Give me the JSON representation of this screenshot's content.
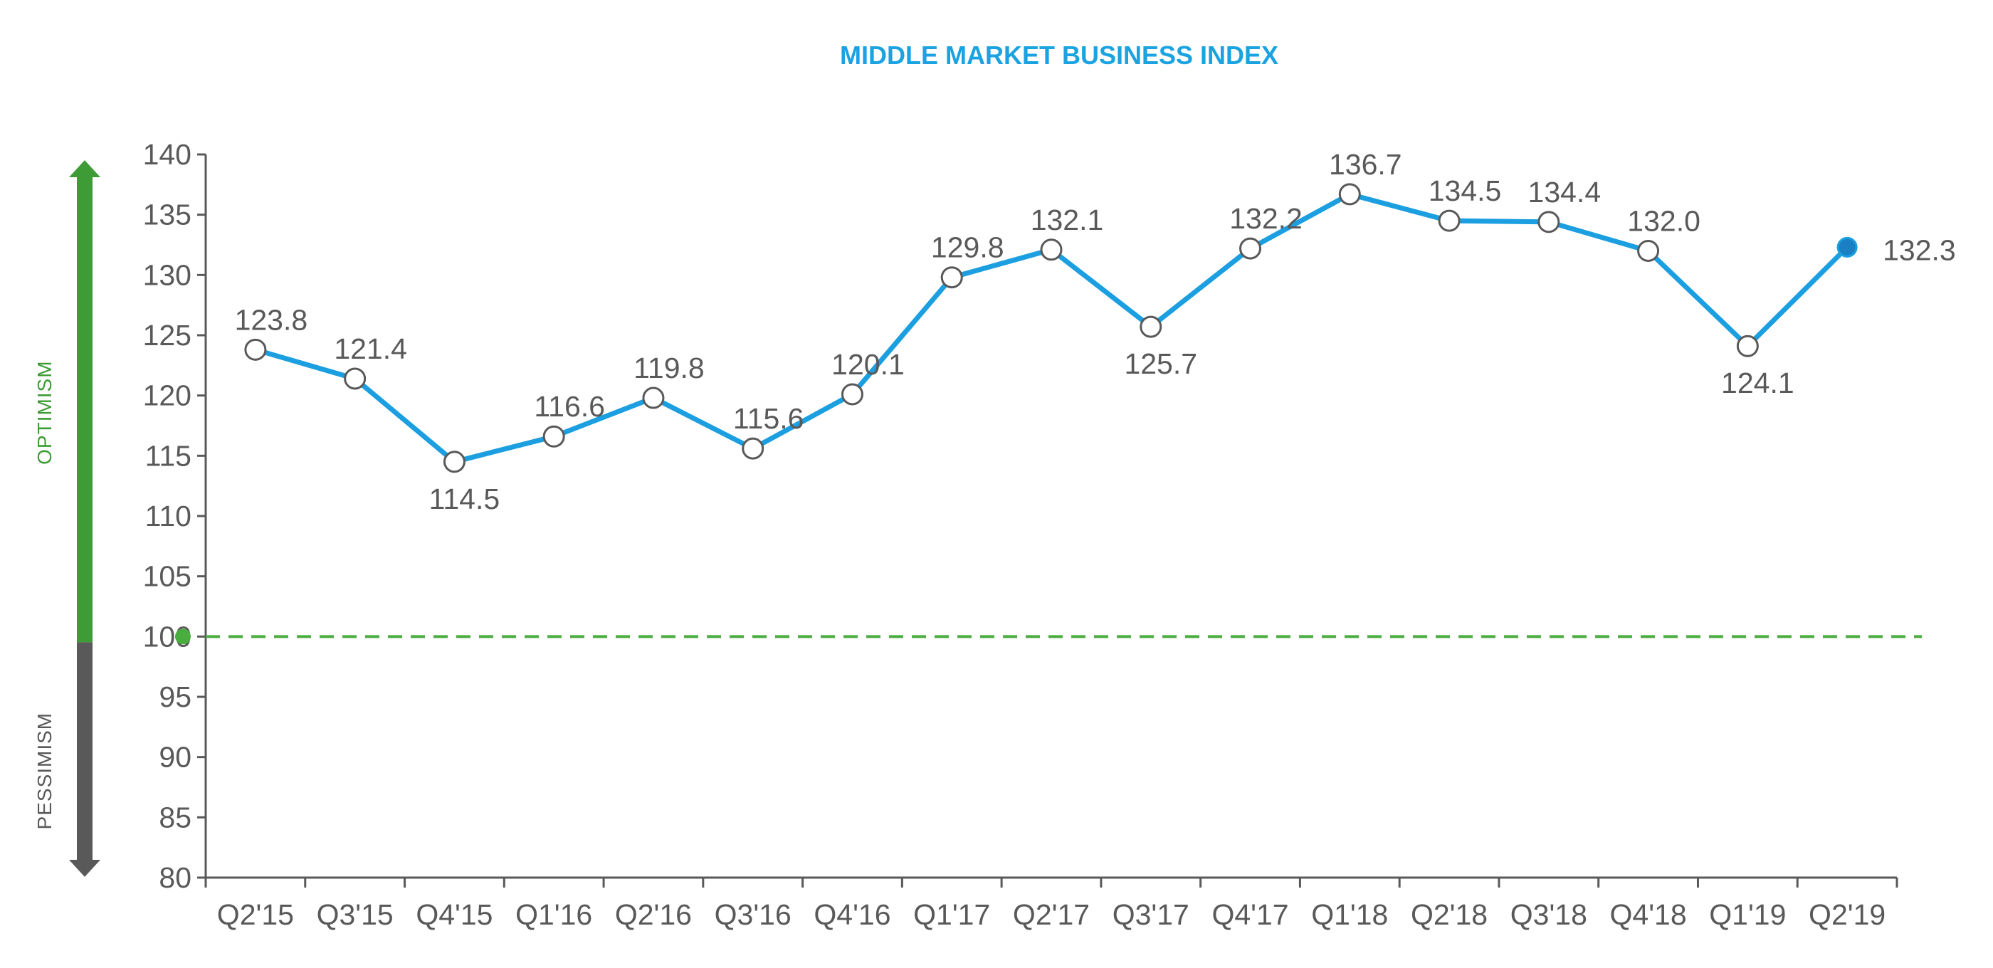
{
  "colors": {
    "title": "#1aa3e0",
    "line": "#1b9fe0",
    "marker_fill": "#ffffff",
    "marker_stroke": "#595959",
    "last_marker_fill": "#1b7fc4",
    "reference_line": "#4aad3f",
    "optimism": "#3d9c35",
    "pessimism": "#595959",
    "axis": "#595959"
  },
  "side_labels": {
    "optimism": "OPTIMISM",
    "pessimism": "PESSIMISM"
  },
  "chart_data": {
    "type": "line",
    "title": "MIDDLE MARKET BUSINESS INDEX",
    "xlabel": "",
    "ylabel": "",
    "ylim": [
      80,
      140
    ],
    "yticks": [
      "80",
      "85",
      "90",
      "95",
      "100",
      "105",
      "110",
      "115",
      "120",
      "125",
      "130",
      "135",
      "140"
    ],
    "reference_line": 100,
    "grid": false,
    "legend": "none",
    "categories": [
      "Q2'15",
      "Q3'15",
      "Q4'15",
      "Q1'16",
      "Q2'16",
      "Q3'16",
      "Q4'16",
      "Q1'17",
      "Q2'17",
      "Q3'17",
      "Q4'17",
      "Q1'18",
      "Q2'18",
      "Q3'18",
      "Q4'18",
      "Q1'19",
      "Q2'19"
    ],
    "series": [
      {
        "values": [
          123.8,
          121.4,
          114.5,
          116.6,
          119.8,
          115.6,
          120.1,
          129.8,
          132.1,
          125.7,
          132.2,
          136.7,
          134.5,
          134.4,
          132.0,
          124.1,
          132.3
        ],
        "labels": [
          "123.8",
          "121.4",
          "114.5",
          "116.6",
          "119.8",
          "115.6",
          "120.1",
          "129.8",
          "132.1",
          "125.7",
          "132.2",
          "136.7",
          "134.5",
          "134.4",
          "132.0",
          "124.1",
          "132.3"
        ]
      }
    ]
  }
}
